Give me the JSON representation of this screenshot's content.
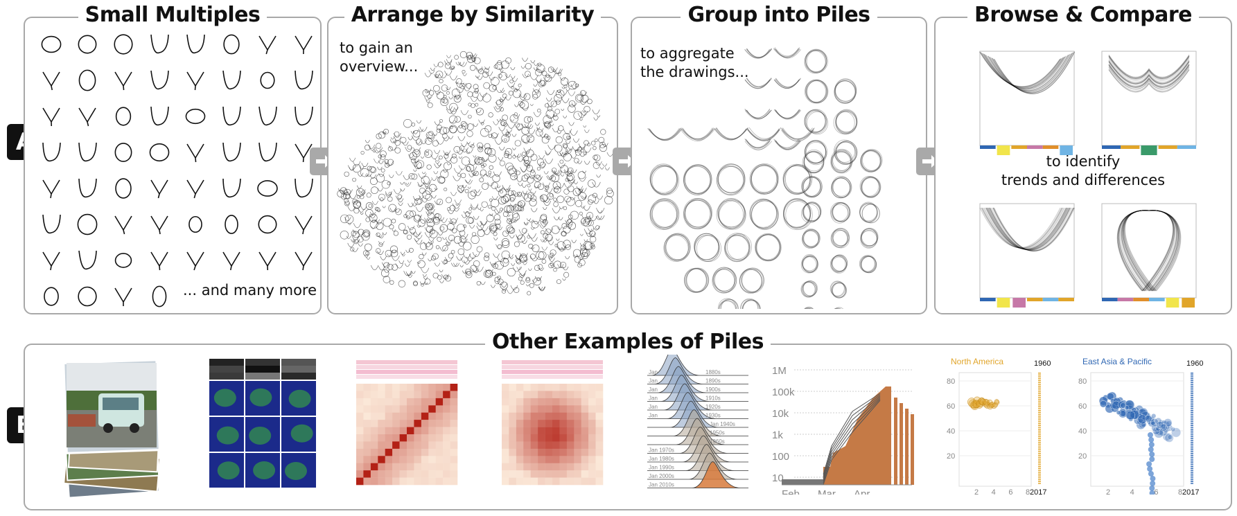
{
  "rowA": {
    "badge": "A",
    "panels": [
      {
        "title": "Small Multiples",
        "caption": "... and many more"
      },
      {
        "title": "Arrange by Similarity",
        "caption_lines": [
          "to gain an",
          "overview..."
        ]
      },
      {
        "title": "Group into Piles",
        "caption_lines": [
          "to aggregate",
          "the drawings..."
        ]
      },
      {
        "title": "Browse & Compare",
        "caption_lines": [
          "to identify",
          "trends and differences"
        ]
      }
    ]
  },
  "rowB": {
    "badge": "B",
    "title": "Other Examples of Piles",
    "ridgeline_labels": [
      "1880s",
      "1890s",
      "1900s",
      "1910s",
      "1920s",
      "1930s",
      "Jan 1940s",
      "1950s",
      "1960s",
      "Jan 1970s",
      "Jan 1980s",
      "Jan 1990s",
      "Jan 2000s",
      "Jan 2010s"
    ],
    "ridgeline_left_labels": [
      "Jan",
      "Jan",
      "Jan",
      "Jan",
      "Jan",
      "Jan"
    ],
    "covid_chart": {
      "y_ticks": [
        "1M",
        "100k",
        "10k",
        "1k",
        "100",
        "10"
      ],
      "x_ticks": [
        "Feb",
        "Mar",
        "Apr"
      ]
    },
    "scatter_na": {
      "region": "North America",
      "year_start": "1960",
      "year_end": "2017",
      "y_ticks": [
        "80",
        "60",
        "40",
        "20"
      ],
      "x_ticks": [
        "2",
        "4",
        "6",
        "8"
      ]
    },
    "scatter_ea": {
      "region": "East Asia & Pacific",
      "year_start": "1960",
      "year_end": "2017",
      "y_ticks": [
        "80",
        "60",
        "40",
        "20"
      ],
      "x_ticks": [
        "2",
        "4",
        "6",
        "8"
      ]
    }
  },
  "colors": {
    "border": "#a8a8a8",
    "arrow": "#a9a9a9",
    "orange_region": "#e1a52a",
    "blue_region": "#2f67b3",
    "heat_dark": "#b32116",
    "heat_light": "#fbe8d8",
    "ridge_blue": "#6f8fb3",
    "ridge_orange": "#d77a3c"
  },
  "icons": [
    "arrow-right-icon"
  ]
}
